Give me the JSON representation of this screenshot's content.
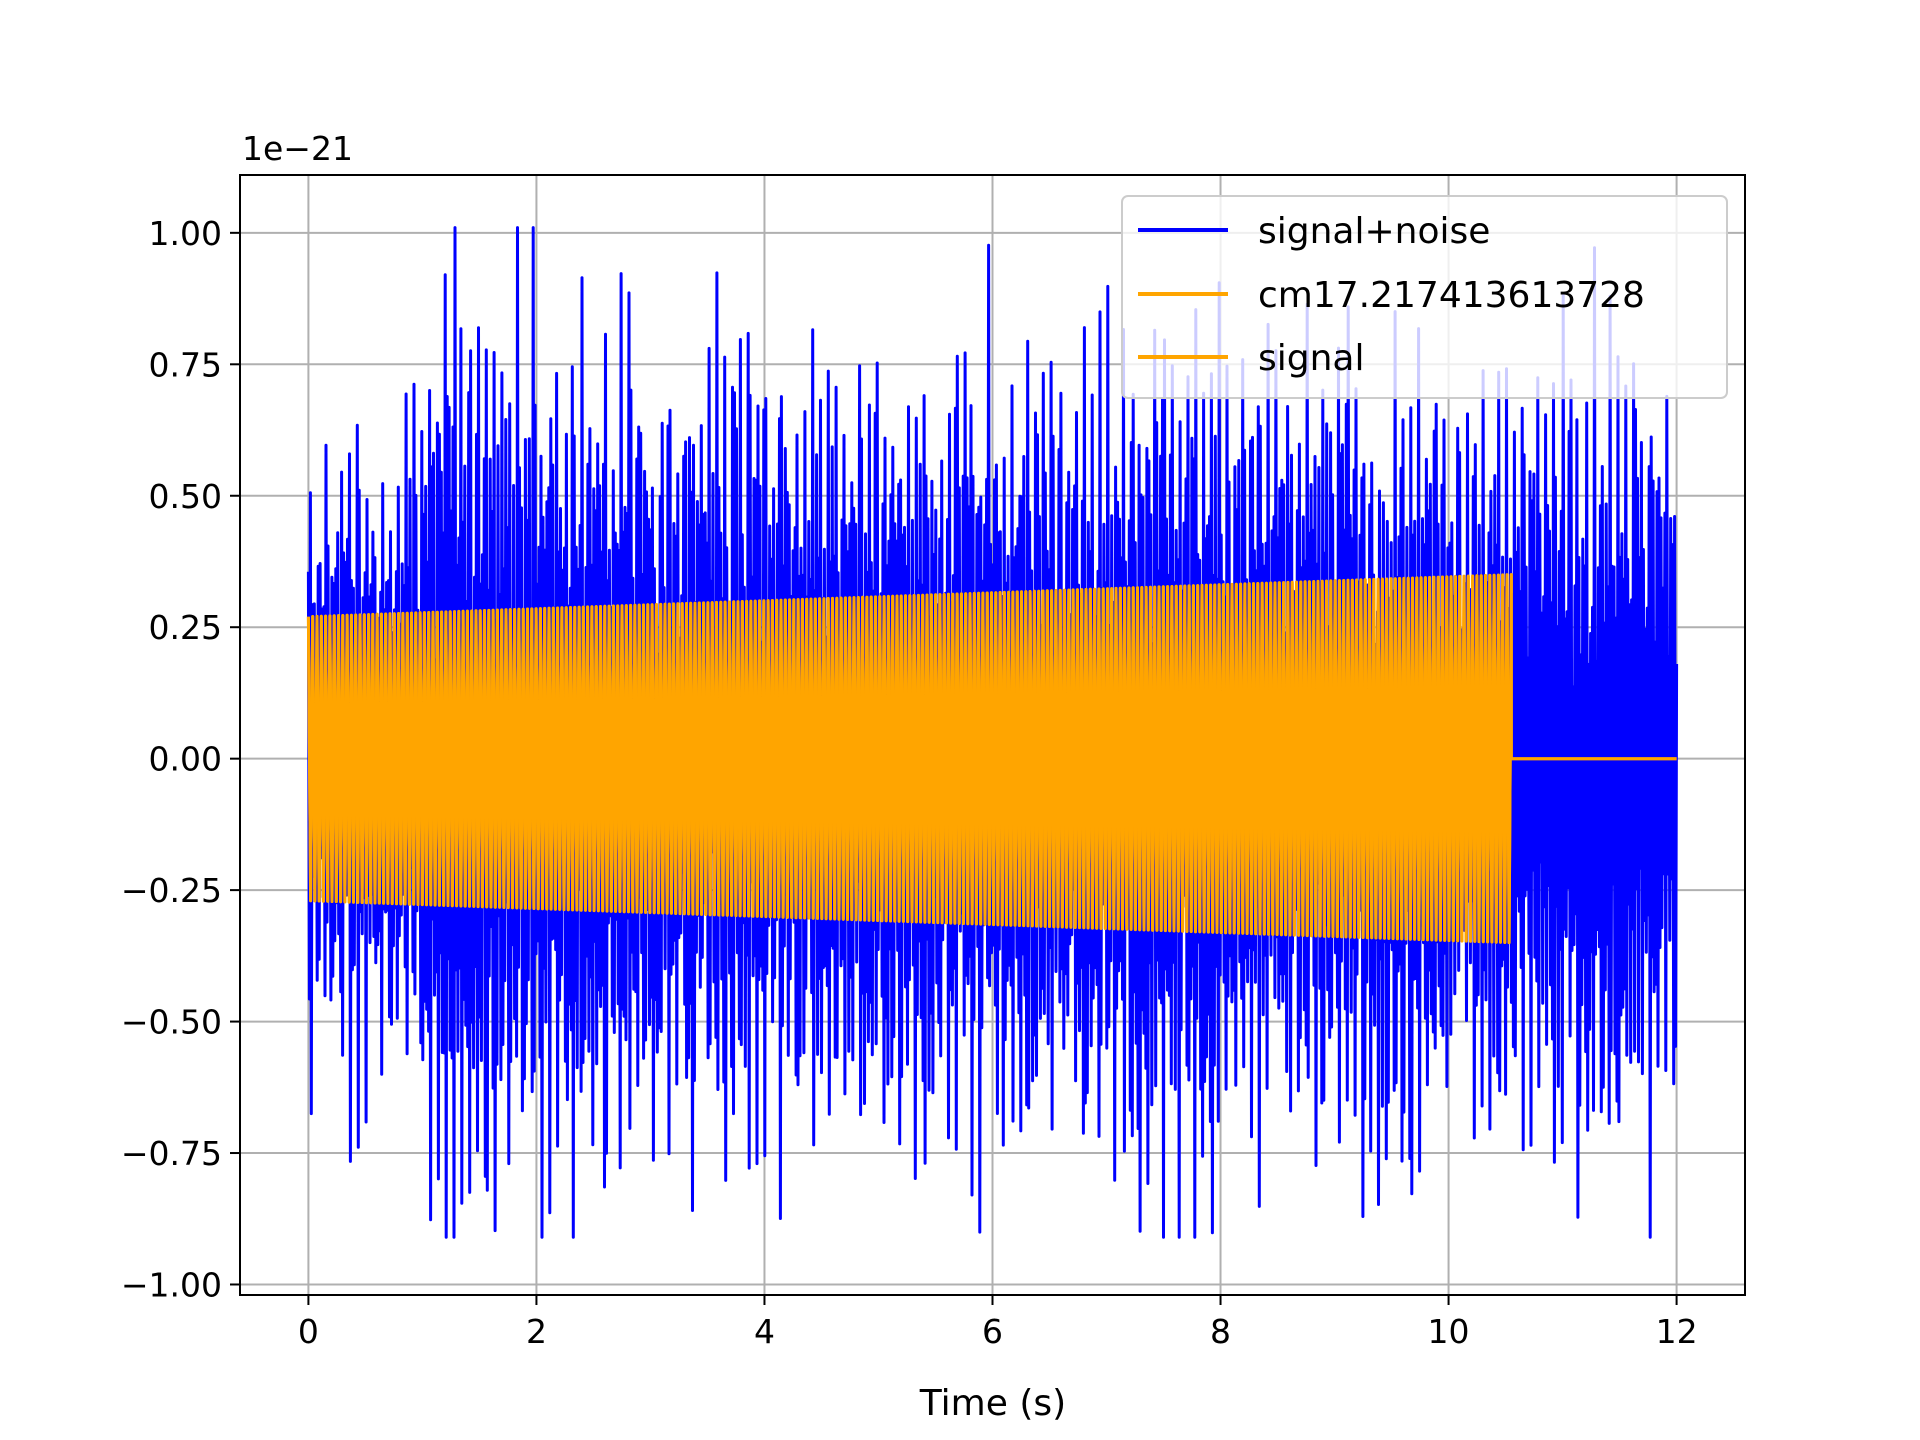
{
  "chart_data": {
    "type": "line",
    "title": "",
    "xlabel": "Time (s)",
    "ylabel": "",
    "y_offset_label": "1e−21",
    "xlim": [
      -0.6,
      12.6
    ],
    "ylim": [
      -1.02,
      1.11
    ],
    "x_ticks": [
      0,
      2,
      4,
      6,
      8,
      10,
      12
    ],
    "x_tick_labels": [
      "0",
      "2",
      "4",
      "6",
      "8",
      "10",
      "12"
    ],
    "y_ticks": [
      -1.0,
      -0.75,
      -0.5,
      -0.25,
      0.0,
      0.25,
      0.5,
      0.75,
      1.0
    ],
    "y_tick_labels": [
      "−1.00",
      "−0.75",
      "−0.50",
      "−0.25",
      "0.00",
      "0.25",
      "0.50",
      "0.75",
      "1.00"
    ],
    "grid": true,
    "legend_position": "top-right",
    "series": [
      {
        "name": "signal+noise",
        "color": "#0000ff",
        "x_range": [
          0,
          12
        ],
        "amplitude_envelope": [
          0.72,
          1.0,
          0.95,
          0.85,
          0.84,
          0.9,
          0.86,
          0.98,
          0.87,
          0.9,
          0.82,
          0.85,
          0.5
        ],
        "description_values": {
          "max": 1.01,
          "min": -0.91
        }
      },
      {
        "name": "cm17.217413613728",
        "color": "#ffa500",
        "x_range": [
          0,
          10.55
        ],
        "amplitude_start": 0.27,
        "amplitude_end": 0.35,
        "post_end_value": 0.0
      },
      {
        "name": "signal",
        "color": "#ffa500",
        "x_range": [
          0,
          10.55
        ],
        "amplitude_start": 0.27,
        "amplitude_end": 0.35,
        "post_end_value": 0.0
      }
    ]
  },
  "legend": {
    "items": [
      {
        "label": "signal+noise",
        "color": "#0000ff"
      },
      {
        "label": "cm17.217413613728",
        "color": "#ffa500"
      },
      {
        "label": "signal",
        "color": "#ffa500"
      }
    ]
  }
}
